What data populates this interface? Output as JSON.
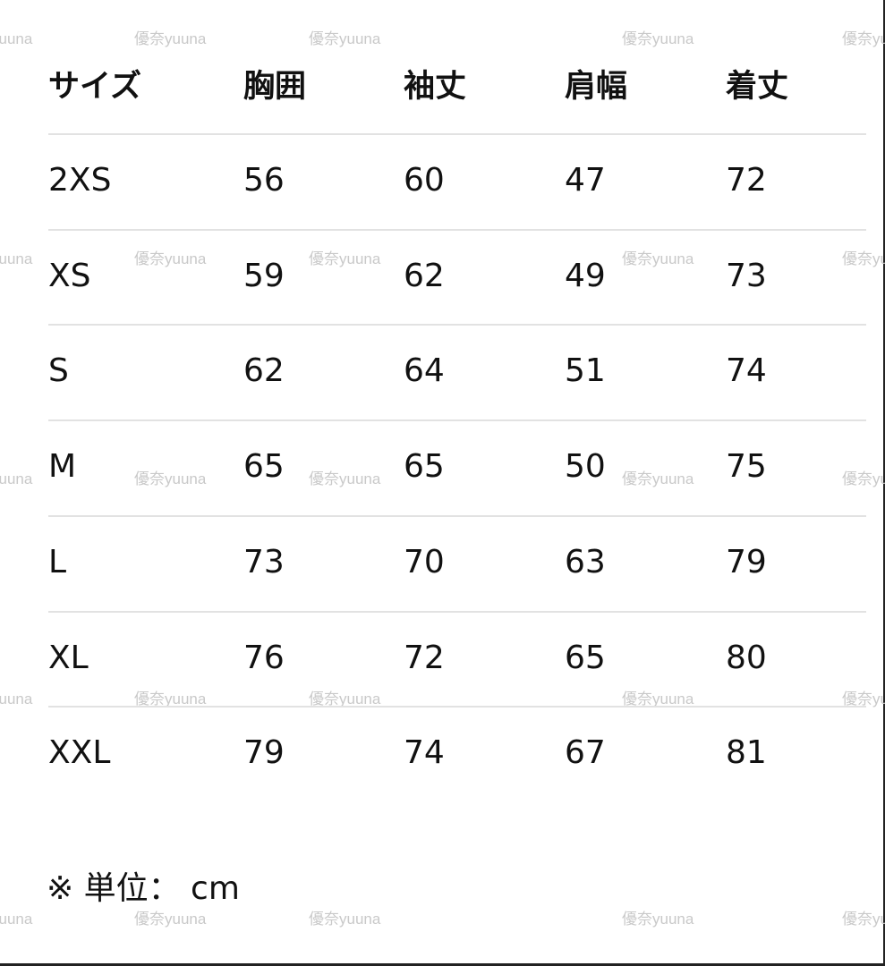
{
  "watermark": "優奈yuuna",
  "table": {
    "headers": [
      "サイズ",
      "胸囲",
      "袖丈",
      "肩幅",
      "着丈"
    ],
    "rows": [
      [
        "2XS",
        "56",
        "60",
        "47",
        "72"
      ],
      [
        "XS",
        "59",
        "62",
        "49",
        "73"
      ],
      [
        "S",
        "62",
        "64",
        "51",
        "74"
      ],
      [
        "M",
        "65",
        "65",
        "50",
        "75"
      ],
      [
        "L",
        "73",
        "70",
        "63",
        "79"
      ],
      [
        "XL",
        "76",
        "72",
        "65",
        "80"
      ],
      [
        "XXL",
        "79",
        "74",
        "67",
        "81"
      ]
    ]
  },
  "footnote": "※ 単位：  cm"
}
